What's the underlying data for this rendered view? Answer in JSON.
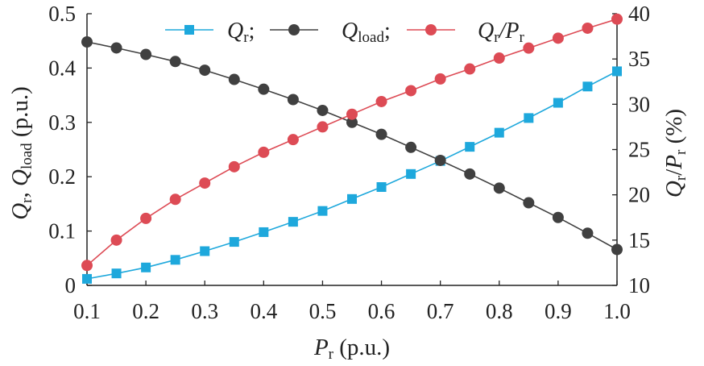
{
  "chart_data": {
    "type": "line",
    "x": [
      0.1,
      0.15,
      0.2,
      0.25,
      0.3,
      0.35,
      0.4,
      0.45,
      0.5,
      0.55,
      0.6,
      0.65,
      0.7,
      0.75,
      0.8,
      0.85,
      0.9,
      0.95,
      1.0
    ],
    "xlabel": "P_r (p.u.)",
    "ylabel_left": "Q_r, Q_load (p.u.)",
    "ylabel_right": "Q_r/P_r (%)",
    "xlim": [
      0.1,
      1.0
    ],
    "ylim_left": [
      0,
      0.5
    ],
    "ylim_right": [
      10,
      40
    ],
    "xticks": [
      "0.1",
      "0.2",
      "0.3",
      "0.4",
      "0.5",
      "0.6",
      "0.7",
      "0.8",
      "0.9",
      "1.0"
    ],
    "yticks_left": [
      "0",
      "0.1",
      "0.2",
      "0.3",
      "0.4",
      "0.5"
    ],
    "yticks_right": [
      "10",
      "15",
      "20",
      "25",
      "30",
      "35",
      "40"
    ],
    "legend_position": "top",
    "grid": false,
    "series": [
      {
        "name": "Q_r",
        "axis": "left",
        "color": "#1ea8dc",
        "marker": "square",
        "values": [
          0.012,
          0.022,
          0.033,
          0.047,
          0.063,
          0.08,
          0.098,
          0.117,
          0.137,
          0.159,
          0.181,
          0.205,
          0.229,
          0.255,
          0.281,
          0.308,
          0.336,
          0.366,
          0.394
        ]
      },
      {
        "name": "Q_load",
        "axis": "left",
        "color": "#404040",
        "marker": "circle",
        "values": [
          0.448,
          0.437,
          0.425,
          0.412,
          0.396,
          0.379,
          0.361,
          0.342,
          0.322,
          0.3,
          0.278,
          0.254,
          0.23,
          0.205,
          0.179,
          0.152,
          0.125,
          0.096,
          0.066
        ]
      },
      {
        "name": "Q_r/P_r",
        "axis": "right",
        "color": "#dd4b55",
        "marker": "circle",
        "values": [
          12.2,
          15.0,
          17.4,
          19.5,
          21.3,
          23.1,
          24.7,
          26.1,
          27.5,
          28.9,
          30.3,
          31.5,
          32.8,
          33.9,
          35.1,
          36.2,
          37.3,
          38.4,
          39.4
        ]
      }
    ]
  }
}
